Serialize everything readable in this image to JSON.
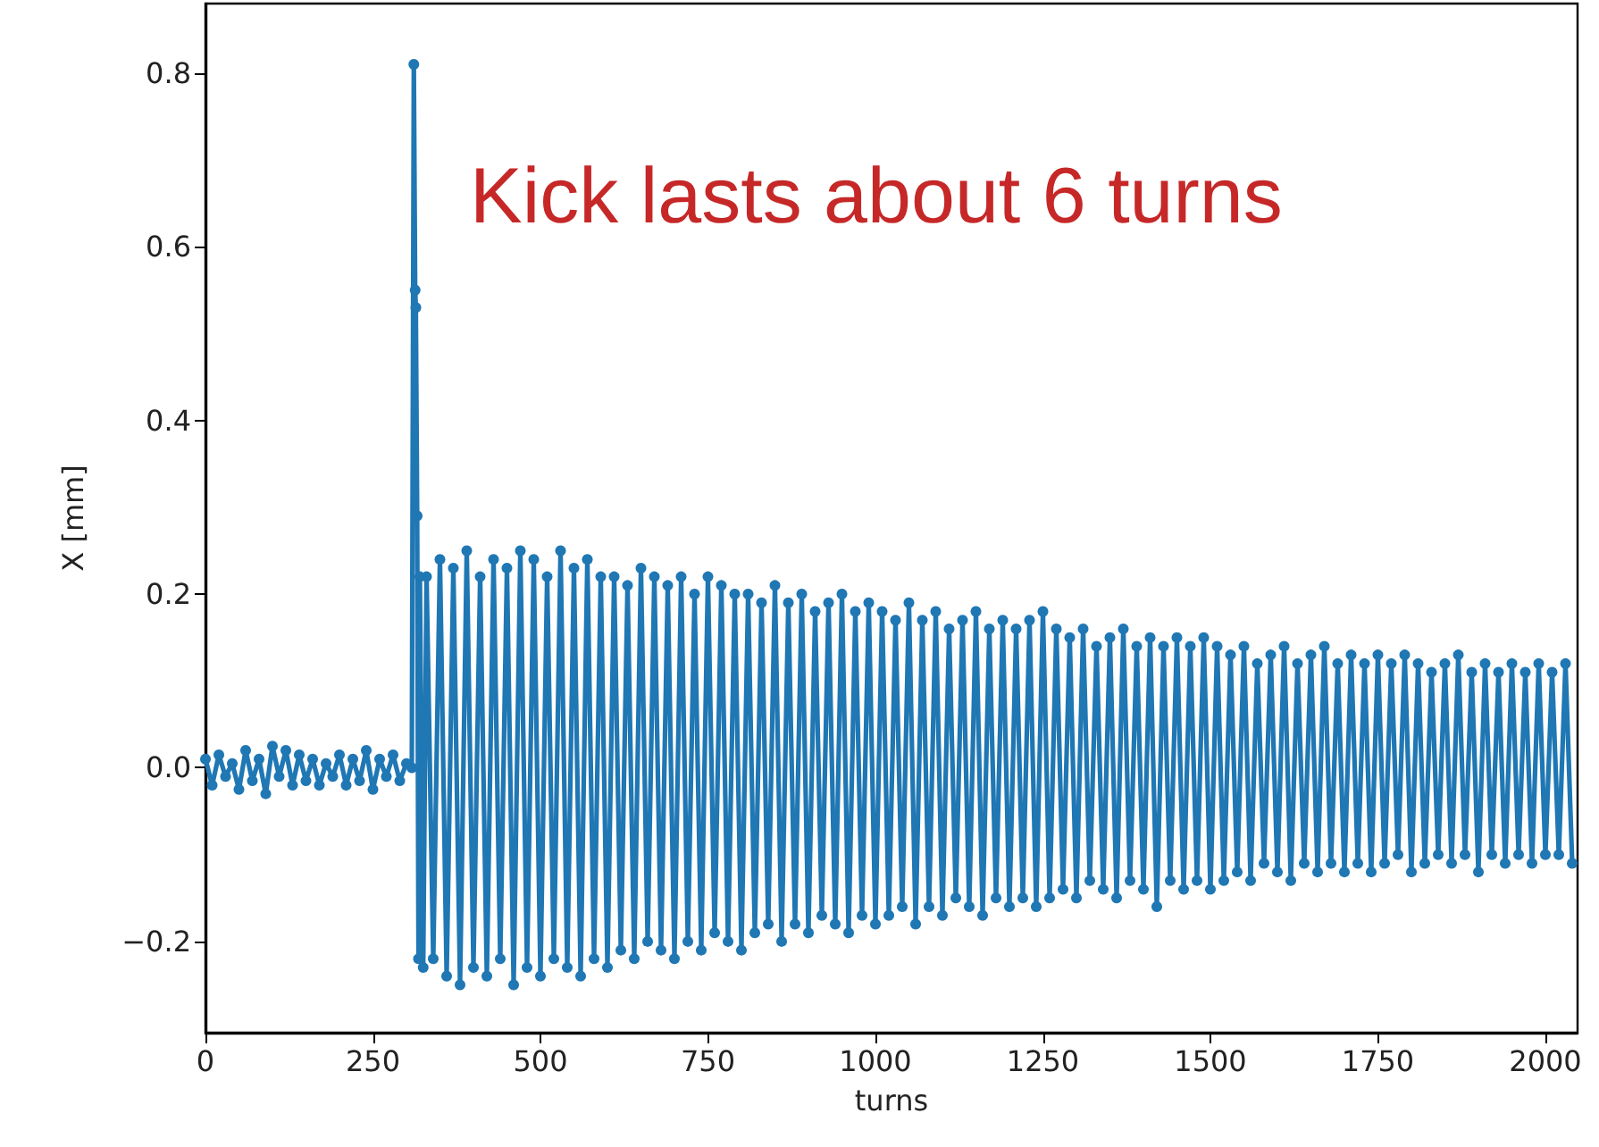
{
  "chart_data": {
    "type": "line",
    "xlabel": "turns",
    "ylabel": "X [mm]",
    "annotations": [
      "Kick lasts about 6 turns"
    ],
    "xlim": [
      0,
      2048
    ],
    "xticks": [
      0,
      250,
      500,
      750,
      1000,
      1250,
      1500,
      1750,
      2000
    ],
    "ylim": [
      -0.305,
      0.88
    ],
    "yticks": [
      {
        "value": -0.2,
        "label": "−0.2"
      },
      {
        "value": 0,
        "label": "0.0"
      },
      0.2,
      0.4,
      0.6,
      0.8
    ],
    "grid": false,
    "marker": "circle",
    "line_style": "solid",
    "series": [
      {
        "color": "#1f77b4",
        "x": [
          0,
          10,
          20,
          30,
          40,
          50,
          60,
          70,
          80,
          90,
          100,
          110,
          120,
          130,
          140,
          150,
          160,
          170,
          180,
          190,
          200,
          210,
          220,
          230,
          240,
          250,
          260,
          270,
          280,
          290,
          300,
          308,
          311,
          313,
          314,
          316,
          318,
          320,
          325,
          330,
          340,
          350,
          360,
          370,
          380,
          390,
          400,
          410,
          420,
          430,
          440,
          450,
          460,
          470,
          480,
          490,
          500,
          510,
          520,
          530,
          540,
          550,
          560,
          570,
          580,
          590,
          600,
          610,
          620,
          630,
          640,
          650,
          660,
          670,
          680,
          690,
          700,
          710,
          720,
          730,
          740,
          750,
          760,
          770,
          780,
          790,
          800,
          810,
          820,
          830,
          840,
          850,
          860,
          870,
          880,
          890,
          900,
          910,
          920,
          930,
          940,
          950,
          960,
          970,
          980,
          990,
          1000,
          1010,
          1020,
          1030,
          1040,
          1050,
          1060,
          1070,
          1080,
          1090,
          1100,
          1110,
          1120,
          1130,
          1140,
          1150,
          1160,
          1170,
          1180,
          1190,
          1200,
          1210,
          1220,
          1230,
          1240,
          1250,
          1260,
          1270,
          1280,
          1290,
          1300,
          1310,
          1320,
          1330,
          1340,
          1350,
          1360,
          1370,
          1380,
          1390,
          1400,
          1410,
          1420,
          1430,
          1440,
          1450,
          1460,
          1470,
          1480,
          1490,
          1500,
          1510,
          1520,
          1530,
          1540,
          1550,
          1560,
          1570,
          1580,
          1590,
          1600,
          1610,
          1620,
          1630,
          1640,
          1650,
          1660,
          1670,
          1680,
          1690,
          1700,
          1710,
          1720,
          1730,
          1740,
          1750,
          1760,
          1770,
          1780,
          1790,
          1800,
          1810,
          1820,
          1830,
          1840,
          1850,
          1860,
          1870,
          1880,
          1890,
          1900,
          1910,
          1920,
          1930,
          1940,
          1950,
          1960,
          1970,
          1980,
          1990,
          2000,
          2010,
          2020,
          2030,
          2040
        ],
        "values": [
          0.01,
          -0.02,
          0.015,
          -0.01,
          0.005,
          -0.025,
          0.02,
          -0.015,
          0.01,
          -0.03,
          0.025,
          -0.01,
          0.02,
          -0.02,
          0.015,
          -0.015,
          0.01,
          -0.02,
          0.005,
          -0.01,
          0.015,
          -0.02,
          0.01,
          -0.015,
          0.02,
          -0.025,
          0.01,
          -0.01,
          0.015,
          -0.015,
          0.005,
          0.0,
          0.81,
          0.55,
          0.53,
          0.29,
          -0.22,
          0.22,
          -0.23,
          0.22,
          -0.22,
          0.24,
          -0.24,
          0.23,
          -0.25,
          0.25,
          -0.23,
          0.22,
          -0.24,
          0.24,
          -0.22,
          0.23,
          -0.25,
          0.25,
          -0.23,
          0.24,
          -0.24,
          0.22,
          -0.22,
          0.25,
          -0.23,
          0.23,
          -0.24,
          0.24,
          -0.22,
          0.22,
          -0.23,
          0.22,
          -0.21,
          0.21,
          -0.22,
          0.23,
          -0.2,
          0.22,
          -0.21,
          0.21,
          -0.22,
          0.22,
          -0.2,
          0.2,
          -0.21,
          0.22,
          -0.19,
          0.21,
          -0.2,
          0.2,
          -0.21,
          0.2,
          -0.19,
          0.19,
          -0.18,
          0.21,
          -0.2,
          0.19,
          -0.18,
          0.2,
          -0.19,
          0.18,
          -0.17,
          0.19,
          -0.18,
          0.2,
          -0.19,
          0.18,
          -0.17,
          0.19,
          -0.18,
          0.18,
          -0.17,
          0.17,
          -0.16,
          0.19,
          -0.18,
          0.17,
          -0.16,
          0.18,
          -0.17,
          0.16,
          -0.15,
          0.17,
          -0.16,
          0.18,
          -0.17,
          0.16,
          -0.15,
          0.17,
          -0.16,
          0.16,
          -0.15,
          0.17,
          -0.16,
          0.18,
          -0.15,
          0.16,
          -0.14,
          0.15,
          -0.15,
          0.16,
          -0.13,
          0.14,
          -0.14,
          0.15,
          -0.15,
          0.16,
          -0.13,
          0.14,
          -0.14,
          0.15,
          -0.16,
          0.14,
          -0.13,
          0.15,
          -0.14,
          0.14,
          -0.13,
          0.15,
          -0.14,
          0.14,
          -0.13,
          0.13,
          -0.12,
          0.14,
          -0.13,
          0.12,
          -0.11,
          0.13,
          -0.12,
          0.14,
          -0.13,
          0.12,
          -0.11,
          0.13,
          -0.12,
          0.14,
          -0.11,
          0.12,
          -0.12,
          0.13,
          -0.11,
          0.12,
          -0.12,
          0.13,
          -0.11,
          0.12,
          -0.1,
          0.13,
          -0.12,
          0.12,
          -0.11,
          0.11,
          -0.1,
          0.12,
          -0.11,
          0.13,
          -0.1,
          0.11,
          -0.12,
          0.12,
          -0.1,
          0.11,
          -0.11,
          0.12,
          -0.1,
          0.11,
          -0.11,
          0.12,
          -0.1,
          0.11,
          -0.1,
          0.12,
          -0.11
        ]
      }
    ]
  }
}
